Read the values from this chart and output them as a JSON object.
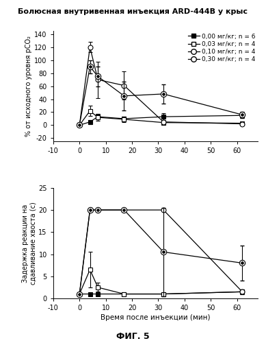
{
  "title": "Болюсная внутривенная инъекция ARD-444B у крыс",
  "xlabel": "Время после инъекции (мин)",
  "ylabel_top": "% от исходного уровня рСО₂",
  "ylabel_bottom": "Задержка реакции на\nсдавливание хвоста (с)",
  "fig_label": "ФИГ. 5",
  "legend_entries": [
    "0,00 мг/кг; n = 6",
    "0,03 мг/кг; n = 4",
    "0,10 мг/кг; n = 4",
    "0,30 мг/кг; n = 4"
  ],
  "xdata": [
    0,
    4,
    7,
    17,
    32,
    62
  ],
  "xlim": [
    -10,
    68
  ],
  "xticks": [
    -10,
    0,
    10,
    20,
    30,
    40,
    50,
    60
  ],
  "top": {
    "ylim": [
      -25,
      145
    ],
    "yticks": [
      -20,
      0,
      20,
      40,
      60,
      80,
      100,
      120,
      140
    ],
    "series": [
      {
        "y": [
          0,
          5,
          13,
          10,
          13,
          15
        ],
        "yerr": [
          0,
          3,
          4,
          3,
          5,
          4
        ],
        "marker": "s",
        "fillstyle": "full"
      },
      {
        "y": [
          0,
          22,
          12,
          9,
          4,
          3
        ],
        "yerr": [
          0,
          8,
          5,
          4,
          4,
          2
        ],
        "marker": "s",
        "fillstyle": "none"
      },
      {
        "y": [
          0,
          90,
          75,
          45,
          48,
          16
        ],
        "yerr": [
          0,
          10,
          15,
          22,
          15,
          5
        ],
        "marker": "diamond_circle",
        "fillstyle": "none"
      },
      {
        "y": [
          0,
          120,
          70,
          61,
          5,
          2
        ],
        "yerr": [
          0,
          8,
          28,
          22,
          5,
          2
        ],
        "marker": "o",
        "fillstyle": "none"
      }
    ]
  },
  "bottom": {
    "ylim": [
      0,
      25
    ],
    "yticks": [
      0,
      5,
      10,
      15,
      20,
      25
    ],
    "series": [
      {
        "y": [
          1,
          1,
          1,
          1,
          1,
          1.5
        ],
        "yerr": [
          0,
          0,
          0,
          0,
          0,
          0.5
        ],
        "marker": "s",
        "fillstyle": "full"
      },
      {
        "y": [
          1,
          6.5,
          2.5,
          1,
          1,
          1.5
        ],
        "yerr": [
          0,
          4,
          1,
          0.3,
          0,
          0.3
        ],
        "marker": "s",
        "fillstyle": "none"
      },
      {
        "y": [
          1,
          20,
          20,
          20,
          10.5,
          8
        ],
        "yerr": [
          0,
          0,
          0,
          0,
          10,
          4
        ],
        "marker": "diamond_circle",
        "fillstyle": "none"
      },
      {
        "y": [
          1,
          20,
          20,
          20,
          20,
          1.5
        ],
        "yerr": [
          0,
          0,
          0,
          0,
          0,
          0.5
        ],
        "marker": "o",
        "fillstyle": "none"
      }
    ]
  }
}
